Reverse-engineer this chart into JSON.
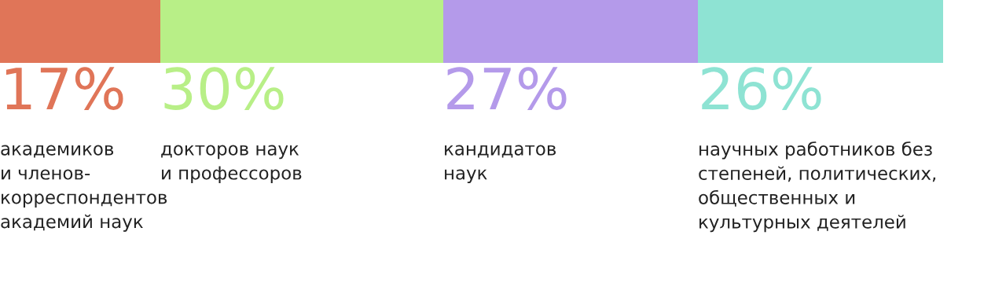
{
  "chart_data": {
    "type": "bar",
    "stacked": true,
    "orientation": "horizontal",
    "categories": [
      null
    ],
    "tick_labels": false,
    "series": [
      {
        "color": "#e07558",
        "values": [
          17
        ],
        "value_labels": [
          "17%"
        ]
      },
      {
        "color": "#b8ef87",
        "values": [
          30
        ],
        "value_labels": [
          "30%"
        ]
      },
      {
        "color": "#b49aea",
        "values": [
          27
        ],
        "value_labels": [
          "27%"
        ]
      },
      {
        "color": "#8ee3d3",
        "values": [
          26
        ],
        "value_labels": [
          "26%"
        ]
      }
    ],
    "annotations": [
      "академиков\nи членов-\nкорреспондентов\nакадемий наук",
      "докторов наук\nи профессоров",
      "кандидатов\nнаук",
      "научных работников без\nстепеней, политических,\nобщественных и\nкультурных деятелей"
    ]
  }
}
